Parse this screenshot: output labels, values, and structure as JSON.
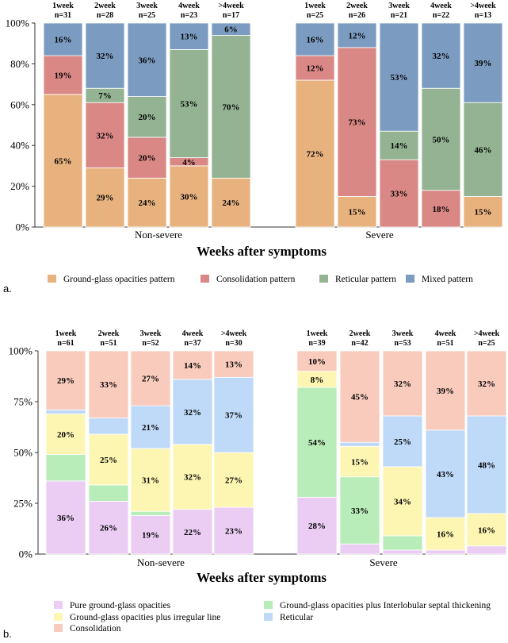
{
  "chart_data": [
    {
      "type": "stacked-bar",
      "panel_label": "a.",
      "xlabel": "Weeks after symptoms",
      "yticks": [
        "0%",
        "20%",
        "40%",
        "60%",
        "80%",
        "100%"
      ],
      "ylim": [
        0,
        100
      ],
      "groups": [
        "Non-severe",
        "Severe"
      ],
      "legend": [
        {
          "name": "Ground-glass opacities pattern",
          "color": "#e8b27f"
        },
        {
          "name": "Consolidation pattern",
          "color": "#d98886"
        },
        {
          "name": "Reticular pattern",
          "color": "#93b392"
        },
        {
          "name": "Mixed pattern",
          "color": "#7b9cc0"
        }
      ],
      "bars": [
        {
          "group": "Non-severe",
          "week": "1week",
          "n": "n=31",
          "values": [
            65,
            19,
            0,
            16
          ],
          "labels": [
            "65%",
            "19%",
            "",
            "16%"
          ]
        },
        {
          "group": "Non-severe",
          "week": "2week",
          "n": "n=28",
          "values": [
            29,
            32,
            7,
            32
          ],
          "labels": [
            "29%",
            "32%",
            "7%",
            "32%"
          ]
        },
        {
          "group": "Non-severe",
          "week": "3week",
          "n": "n=25",
          "values": [
            24,
            20,
            20,
            36
          ],
          "labels": [
            "24%",
            "20%",
            "20%",
            "36%"
          ]
        },
        {
          "group": "Non-severe",
          "week": "4week",
          "n": "n=23",
          "values": [
            30,
            4,
            53,
            13
          ],
          "labels": [
            "30%",
            "4%",
            "53%",
            "13%"
          ]
        },
        {
          "group": "Non-severe",
          "week": ">4week",
          "n": "n=17",
          "values": [
            24,
            0,
            70,
            6
          ],
          "labels": [
            "24%",
            "",
            "70%",
            "6%"
          ]
        },
        {
          "group": "Severe",
          "week": "1week",
          "n": "n=25",
          "values": [
            72,
            12,
            0,
            16
          ],
          "labels": [
            "72%",
            "12%",
            "",
            "16%"
          ]
        },
        {
          "group": "Severe",
          "week": "2week",
          "n": "n=26",
          "values": [
            15,
            73,
            0,
            12
          ],
          "labels": [
            "15%",
            "73%",
            "",
            "12%"
          ]
        },
        {
          "group": "Severe",
          "week": "3week",
          "n": "n=21",
          "values": [
            0,
            33,
            14,
            53
          ],
          "labels": [
            "",
            "33%",
            "14%",
            "53%"
          ]
        },
        {
          "group": "Severe",
          "week": "4week",
          "n": "n=22",
          "values": [
            0,
            18,
            50,
            32
          ],
          "labels": [
            "",
            "18%",
            "50%",
            "32%"
          ]
        },
        {
          "group": "Severe",
          "week": ">4week",
          "n": "n=13",
          "values": [
            15,
            0,
            46,
            39
          ],
          "labels": [
            "15%",
            "",
            "46%",
            "39%"
          ]
        }
      ]
    },
    {
      "type": "stacked-bar",
      "panel_label": "b.",
      "xlabel": "Weeks after symptoms",
      "yticks": [
        "0%",
        "25%",
        "50%",
        "75%",
        "100%"
      ],
      "ylim": [
        0,
        100
      ],
      "groups": [
        "Non-severe",
        "Severe"
      ],
      "legend": [
        {
          "name": "Pure ground-glass opacities",
          "color": "#ebcdf4"
        },
        {
          "name": "Ground-glass opacities plus Interlobular septal thickening",
          "color": "#b8ecb8"
        },
        {
          "name": "Ground-glass opacities plus irregular line",
          "color": "#fdf6b2"
        },
        {
          "name": "Reticular",
          "color": "#bfd9f8"
        },
        {
          "name": "Consolidation",
          "color": "#f8cbbd"
        }
      ],
      "bars": [
        {
          "group": "Non-severe",
          "week": "1week",
          "n": "n=61",
          "values": [
            36,
            13,
            20,
            2,
            29
          ],
          "labels": [
            "36%",
            "",
            "20%",
            "",
            "29%"
          ]
        },
        {
          "group": "Non-severe",
          "week": "2week",
          "n": "n=51",
          "values": [
            26,
            8,
            25,
            8,
            33
          ],
          "labels": [
            "26%",
            "",
            "25%",
            "",
            "33%"
          ]
        },
        {
          "group": "Non-severe",
          "week": "3week",
          "n": "n=52",
          "values": [
            19,
            2,
            31,
            21,
            27
          ],
          "labels": [
            "19%",
            "",
            "31%",
            "21%",
            "27%"
          ]
        },
        {
          "group": "Non-severe",
          "week": "4week",
          "n": "n=37",
          "values": [
            22,
            0,
            32,
            32,
            14
          ],
          "labels": [
            "22%",
            "",
            "32%",
            "32%",
            "14%"
          ]
        },
        {
          "group": "Non-severe",
          "week": ">4week",
          "n": "n=30",
          "values": [
            23,
            0,
            27,
            37,
            13
          ],
          "labels": [
            "23%",
            "",
            "27%",
            "37%",
            "13%"
          ]
        },
        {
          "group": "Severe",
          "week": "1week",
          "n": "n=39",
          "values": [
            28,
            54,
            8,
            0,
            10
          ],
          "labels": [
            "28%",
            "54%",
            "8%",
            "",
            "10%"
          ]
        },
        {
          "group": "Severe",
          "week": "2week",
          "n": "n=42",
          "values": [
            5,
            33,
            15,
            2,
            45
          ],
          "labels": [
            "",
            "33%",
            "15%",
            "",
            "45%"
          ]
        },
        {
          "group": "Severe",
          "week": "3week",
          "n": "n=53",
          "values": [
            2,
            7,
            34,
            25,
            32
          ],
          "labels": [
            "",
            "",
            "34%",
            "25%",
            "32%"
          ]
        },
        {
          "group": "Severe",
          "week": "4week",
          "n": "n=51",
          "values": [
            2,
            0,
            16,
            43,
            39
          ],
          "labels": [
            "",
            "",
            "16%",
            "43%",
            "39%"
          ]
        },
        {
          "group": "Severe",
          "week": ">4week",
          "n": "n=25",
          "values": [
            4,
            0,
            16,
            48,
            32
          ],
          "labels": [
            "",
            "",
            "16%",
            "48%",
            "32%"
          ]
        }
      ]
    }
  ]
}
